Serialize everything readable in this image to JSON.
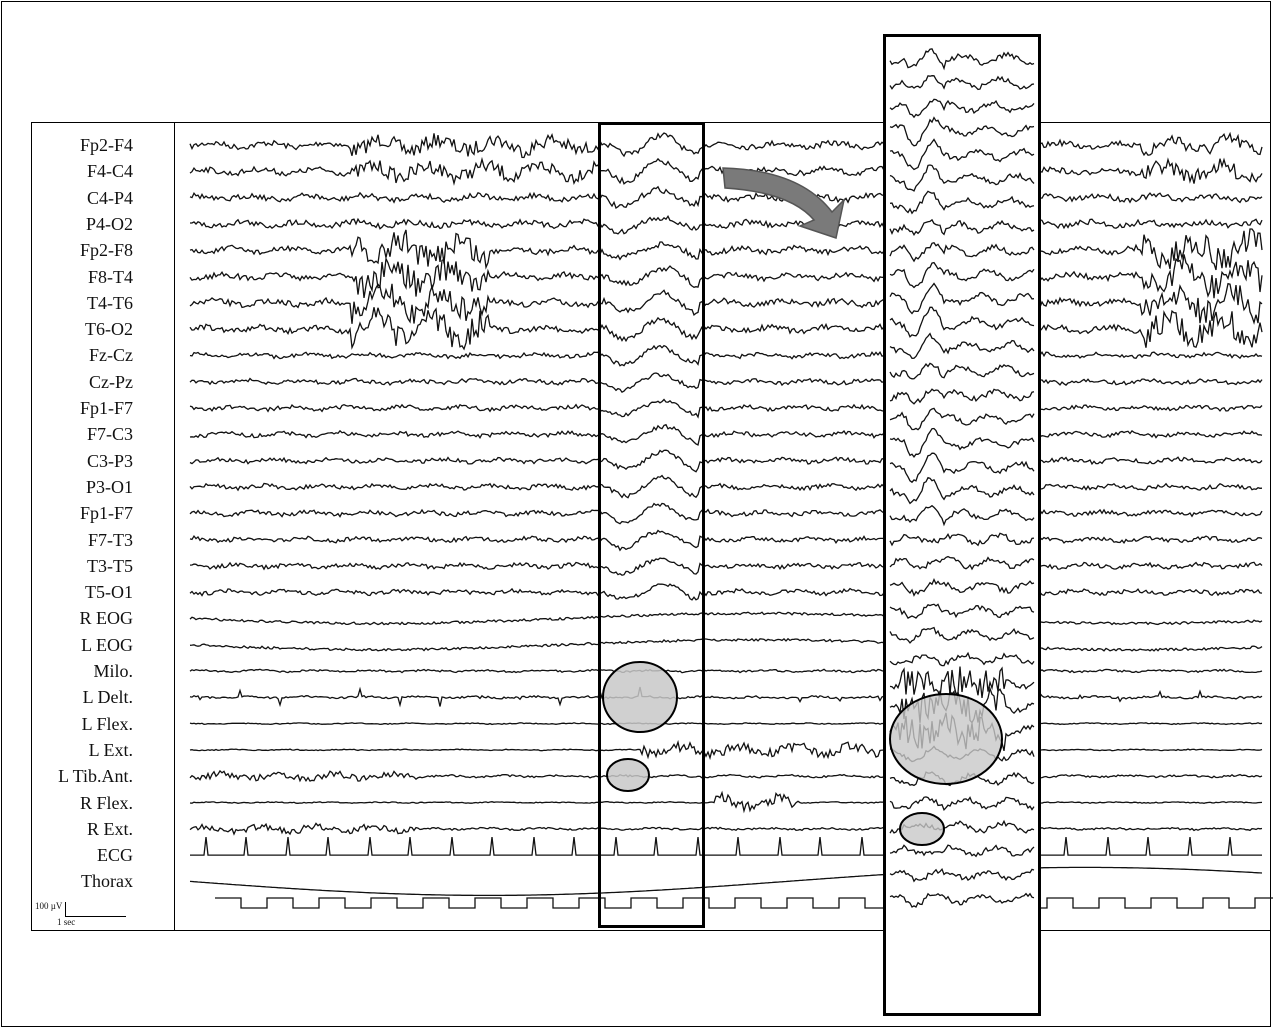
{
  "channels": [
    "Fp2-F4",
    "F4-C4",
    "C4-P4",
    "P4-O2",
    "Fp2-F8",
    "F8-T4",
    "T4-T6",
    "T6-O2",
    "Fz-Cz",
    "Cz-Pz",
    "Fp1-F7",
    "F7-C3",
    "C3-P3",
    "P3-O1",
    "Fp1-F7",
    "F7-T3",
    "T3-T5",
    "T5-O1",
    "R EOG",
    "L EOG",
    "Milo.",
    "L Delt.",
    "L Flex.",
    "L Ext.",
    "L Tib.Ant.",
    "R Flex.",
    "R Ext.",
    "ECG",
    "Thorax"
  ],
  "scale": {
    "amplitude": "100 µV",
    "time": "1 sec"
  },
  "colors": {
    "trace": "#111111",
    "highlight_fill": "#c8c8c8",
    "arrow_fill": "#7a7a7a"
  },
  "icons": {
    "arrow": "curved-arrow-icon"
  }
}
